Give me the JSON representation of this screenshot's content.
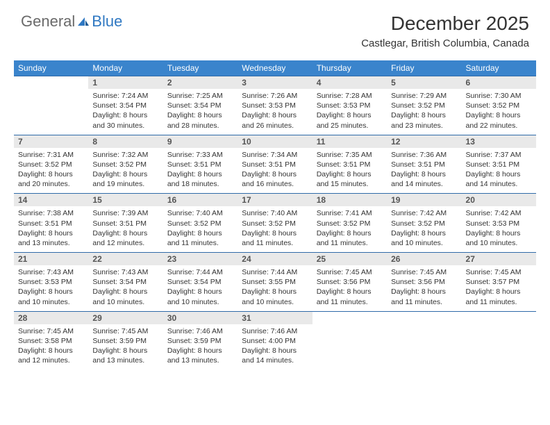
{
  "logo": {
    "text1": "General",
    "text2": "Blue"
  },
  "title": "December 2025",
  "location": "Castlegar, British Columbia, Canada",
  "day_headers": [
    "Sunday",
    "Monday",
    "Tuesday",
    "Wednesday",
    "Thursday",
    "Friday",
    "Saturday"
  ],
  "colors": {
    "header_bg": "#3a84cc",
    "header_text": "#ffffff",
    "daynum_bg": "#e9e9e9",
    "row_border": "#2f6aa8",
    "logo_gray": "#6a6a6a",
    "logo_blue": "#2f78c2"
  },
  "weeks": [
    [
      null,
      {
        "n": "1",
        "sr": "Sunrise: 7:24 AM",
        "ss": "Sunset: 3:54 PM",
        "d1": "Daylight: 8 hours",
        "d2": "and 30 minutes."
      },
      {
        "n": "2",
        "sr": "Sunrise: 7:25 AM",
        "ss": "Sunset: 3:54 PM",
        "d1": "Daylight: 8 hours",
        "d2": "and 28 minutes."
      },
      {
        "n": "3",
        "sr": "Sunrise: 7:26 AM",
        "ss": "Sunset: 3:53 PM",
        "d1": "Daylight: 8 hours",
        "d2": "and 26 minutes."
      },
      {
        "n": "4",
        "sr": "Sunrise: 7:28 AM",
        "ss": "Sunset: 3:53 PM",
        "d1": "Daylight: 8 hours",
        "d2": "and 25 minutes."
      },
      {
        "n": "5",
        "sr": "Sunrise: 7:29 AM",
        "ss": "Sunset: 3:52 PM",
        "d1": "Daylight: 8 hours",
        "d2": "and 23 minutes."
      },
      {
        "n": "6",
        "sr": "Sunrise: 7:30 AM",
        "ss": "Sunset: 3:52 PM",
        "d1": "Daylight: 8 hours",
        "d2": "and 22 minutes."
      }
    ],
    [
      {
        "n": "7",
        "sr": "Sunrise: 7:31 AM",
        "ss": "Sunset: 3:52 PM",
        "d1": "Daylight: 8 hours",
        "d2": "and 20 minutes."
      },
      {
        "n": "8",
        "sr": "Sunrise: 7:32 AM",
        "ss": "Sunset: 3:52 PM",
        "d1": "Daylight: 8 hours",
        "d2": "and 19 minutes."
      },
      {
        "n": "9",
        "sr": "Sunrise: 7:33 AM",
        "ss": "Sunset: 3:51 PM",
        "d1": "Daylight: 8 hours",
        "d2": "and 18 minutes."
      },
      {
        "n": "10",
        "sr": "Sunrise: 7:34 AM",
        "ss": "Sunset: 3:51 PM",
        "d1": "Daylight: 8 hours",
        "d2": "and 16 minutes."
      },
      {
        "n": "11",
        "sr": "Sunrise: 7:35 AM",
        "ss": "Sunset: 3:51 PM",
        "d1": "Daylight: 8 hours",
        "d2": "and 15 minutes."
      },
      {
        "n": "12",
        "sr": "Sunrise: 7:36 AM",
        "ss": "Sunset: 3:51 PM",
        "d1": "Daylight: 8 hours",
        "d2": "and 14 minutes."
      },
      {
        "n": "13",
        "sr": "Sunrise: 7:37 AM",
        "ss": "Sunset: 3:51 PM",
        "d1": "Daylight: 8 hours",
        "d2": "and 14 minutes."
      }
    ],
    [
      {
        "n": "14",
        "sr": "Sunrise: 7:38 AM",
        "ss": "Sunset: 3:51 PM",
        "d1": "Daylight: 8 hours",
        "d2": "and 13 minutes."
      },
      {
        "n": "15",
        "sr": "Sunrise: 7:39 AM",
        "ss": "Sunset: 3:51 PM",
        "d1": "Daylight: 8 hours",
        "d2": "and 12 minutes."
      },
      {
        "n": "16",
        "sr": "Sunrise: 7:40 AM",
        "ss": "Sunset: 3:52 PM",
        "d1": "Daylight: 8 hours",
        "d2": "and 11 minutes."
      },
      {
        "n": "17",
        "sr": "Sunrise: 7:40 AM",
        "ss": "Sunset: 3:52 PM",
        "d1": "Daylight: 8 hours",
        "d2": "and 11 minutes."
      },
      {
        "n": "18",
        "sr": "Sunrise: 7:41 AM",
        "ss": "Sunset: 3:52 PM",
        "d1": "Daylight: 8 hours",
        "d2": "and 11 minutes."
      },
      {
        "n": "19",
        "sr": "Sunrise: 7:42 AM",
        "ss": "Sunset: 3:52 PM",
        "d1": "Daylight: 8 hours",
        "d2": "and 10 minutes."
      },
      {
        "n": "20",
        "sr": "Sunrise: 7:42 AM",
        "ss": "Sunset: 3:53 PM",
        "d1": "Daylight: 8 hours",
        "d2": "and 10 minutes."
      }
    ],
    [
      {
        "n": "21",
        "sr": "Sunrise: 7:43 AM",
        "ss": "Sunset: 3:53 PM",
        "d1": "Daylight: 8 hours",
        "d2": "and 10 minutes."
      },
      {
        "n": "22",
        "sr": "Sunrise: 7:43 AM",
        "ss": "Sunset: 3:54 PM",
        "d1": "Daylight: 8 hours",
        "d2": "and 10 minutes."
      },
      {
        "n": "23",
        "sr": "Sunrise: 7:44 AM",
        "ss": "Sunset: 3:54 PM",
        "d1": "Daylight: 8 hours",
        "d2": "and 10 minutes."
      },
      {
        "n": "24",
        "sr": "Sunrise: 7:44 AM",
        "ss": "Sunset: 3:55 PM",
        "d1": "Daylight: 8 hours",
        "d2": "and 10 minutes."
      },
      {
        "n": "25",
        "sr": "Sunrise: 7:45 AM",
        "ss": "Sunset: 3:56 PM",
        "d1": "Daylight: 8 hours",
        "d2": "and 11 minutes."
      },
      {
        "n": "26",
        "sr": "Sunrise: 7:45 AM",
        "ss": "Sunset: 3:56 PM",
        "d1": "Daylight: 8 hours",
        "d2": "and 11 minutes."
      },
      {
        "n": "27",
        "sr": "Sunrise: 7:45 AM",
        "ss": "Sunset: 3:57 PM",
        "d1": "Daylight: 8 hours",
        "d2": "and 11 minutes."
      }
    ],
    [
      {
        "n": "28",
        "sr": "Sunrise: 7:45 AM",
        "ss": "Sunset: 3:58 PM",
        "d1": "Daylight: 8 hours",
        "d2": "and 12 minutes."
      },
      {
        "n": "29",
        "sr": "Sunrise: 7:45 AM",
        "ss": "Sunset: 3:59 PM",
        "d1": "Daylight: 8 hours",
        "d2": "and 13 minutes."
      },
      {
        "n": "30",
        "sr": "Sunrise: 7:46 AM",
        "ss": "Sunset: 3:59 PM",
        "d1": "Daylight: 8 hours",
        "d2": "and 13 minutes."
      },
      {
        "n": "31",
        "sr": "Sunrise: 7:46 AM",
        "ss": "Sunset: 4:00 PM",
        "d1": "Daylight: 8 hours",
        "d2": "and 14 minutes."
      },
      null,
      null,
      null
    ]
  ]
}
